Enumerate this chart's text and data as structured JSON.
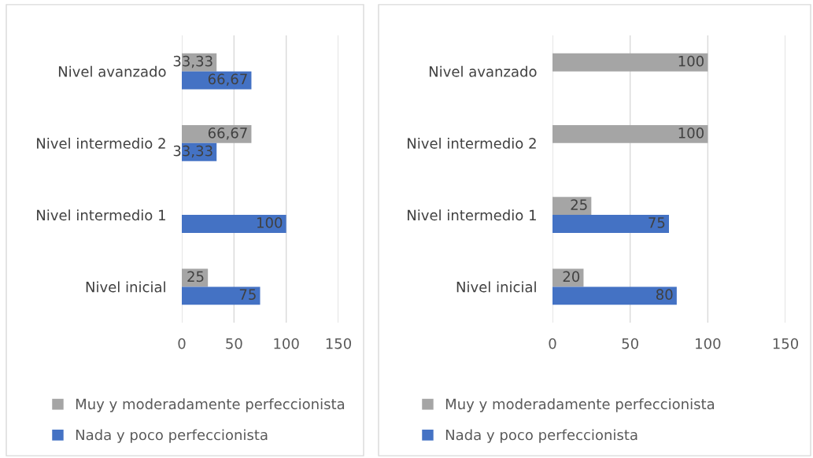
{
  "chart_data": [
    {
      "type": "bar",
      "orientation": "horizontal",
      "categories": [
        "Nivel avanzado",
        "Nivel intermedio 2",
        "Nivel intermedio 1",
        "Nivel inicial"
      ],
      "series": [
        {
          "name": "Muy y moderadamente perfeccionista",
          "color": "#a5a5a5",
          "values": [
            33.33,
            66.67,
            null,
            25
          ],
          "value_labels": [
            "33,33",
            "66,67",
            null,
            "25"
          ]
        },
        {
          "name": "Nada y poco perfeccionista",
          "color": "#4472c4",
          "values": [
            66.67,
            33.33,
            100,
            75
          ],
          "value_labels": [
            "66,67",
            "33,33",
            "100",
            "75"
          ]
        }
      ],
      "xlim": [
        0,
        150
      ],
      "xticks": [
        0,
        50,
        100,
        150
      ],
      "grid": "x",
      "legend": "bottom"
    },
    {
      "type": "bar",
      "orientation": "horizontal",
      "categories": [
        "Nivel avanzado",
        "Nivel intermedio 2",
        "Nivel intermedio 1",
        "Nivel inicial"
      ],
      "series": [
        {
          "name": "Muy y moderadamente perfeccionista",
          "color": "#a5a5a5",
          "values": [
            100,
            100,
            25,
            20
          ],
          "value_labels": [
            "100",
            "100",
            "25",
            "20"
          ]
        },
        {
          "name": "Nada y poco perfeccionista",
          "color": "#4472c4",
          "values": [
            null,
            null,
            75,
            80
          ],
          "value_labels": [
            null,
            null,
            "75",
            "80"
          ]
        }
      ],
      "xlim": [
        0,
        150
      ],
      "xticks": [
        0,
        50,
        100,
        150
      ],
      "grid": "x",
      "legend": "bottom"
    }
  ]
}
